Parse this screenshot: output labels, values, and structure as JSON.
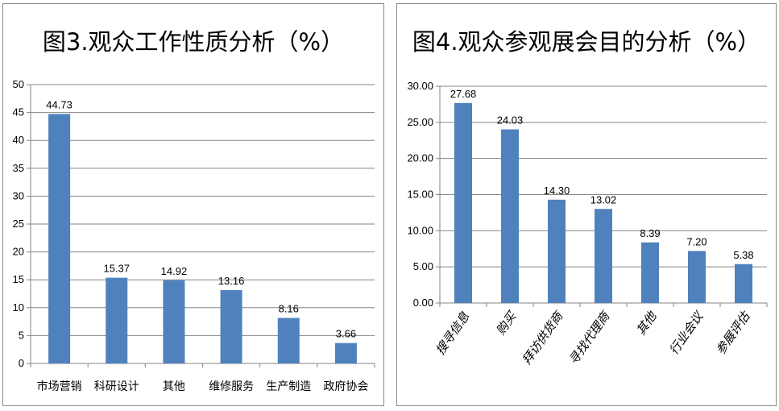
{
  "chart_data": [
    {
      "type": "bar",
      "title": "图3.观众工作性质分析（%）",
      "categories": [
        "市场营销",
        "科研设计",
        "其他",
        "维修服务",
        "生产制造",
        "政府协会"
      ],
      "values": [
        44.73,
        15.37,
        14.92,
        13.16,
        8.16,
        3.66
      ],
      "data_labels": [
        "44.73",
        "15.37",
        "14.92",
        "13.16",
        "8.16",
        "3.66"
      ],
      "ylim": [
        0,
        50
      ],
      "y_ticks": [
        "0",
        "5",
        "10",
        "15",
        "20",
        "25",
        "30",
        "35",
        "40",
        "45",
        "50"
      ],
      "grid": true,
      "xlabel": "",
      "ylabel": "",
      "bar_color": "#4f81bd",
      "gridline_color": "#868686"
    },
    {
      "type": "bar",
      "title": "图4.观众参观展会目的分析（%）",
      "categories": [
        "搜寻信息",
        "购买",
        "拜访供货商",
        "寻找代理商",
        "其他",
        "行业会议",
        "参展评估"
      ],
      "values": [
        27.68,
        24.03,
        14.3,
        13.02,
        8.39,
        7.2,
        5.38
      ],
      "data_labels": [
        "27.68",
        "24.03",
        "14.30",
        "13.02",
        "8.39",
        "7.20",
        "5.38"
      ],
      "ylim": [
        0,
        30
      ],
      "y_ticks": [
        "0.00",
        "5.00",
        "10.00",
        "15.00",
        "20.00",
        "25.00",
        "30.00"
      ],
      "grid": true,
      "xlabel": "",
      "ylabel": "",
      "bar_color": "#4f81bd",
      "gridline_color": "#868686"
    }
  ]
}
